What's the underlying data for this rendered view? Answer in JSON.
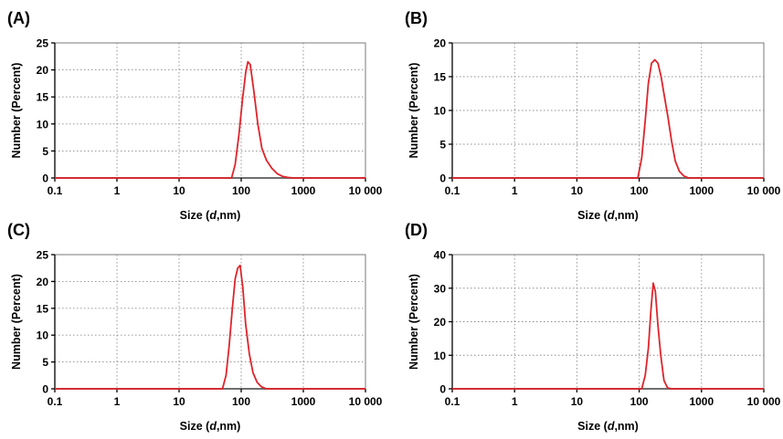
{
  "colors": {
    "series": "#e0242b",
    "axis": "#000000",
    "grid": "#8c8c8c"
  },
  "chart_data": [
    {
      "panel_label": "(A)",
      "type": "line",
      "x_scale": "log",
      "xlim": [
        0.1,
        10000
      ],
      "ylim": [
        0,
        25
      ],
      "x_ticks": [
        0.1,
        1,
        10,
        100,
        1000,
        10000
      ],
      "x_tick_labels": [
        "0.1",
        "1",
        "10",
        "100",
        "1000",
        "10 000"
      ],
      "y_ticks": [
        0,
        5,
        10,
        15,
        20,
        25
      ],
      "y_tick_labels": [
        "0",
        "5",
        "10",
        "15",
        "20",
        "25"
      ],
      "xlabel_pre": "Size (",
      "xlabel_var": "d",
      "xlabel_post": ",nm)",
      "ylabel": "Number (Percent)",
      "grid": true,
      "series": [
        {
          "x": [
            0.1,
            70,
            80,
            92,
            105,
            118,
            128,
            140,
            160,
            185,
            215,
            255,
            310,
            380,
            460,
            560,
            700,
            10000
          ],
          "y": [
            0,
            0,
            2.5,
            8,
            14.5,
            19.5,
            21.5,
            21,
            16,
            10,
            5.5,
            3.3,
            1.8,
            0.8,
            0.3,
            0.1,
            0,
            0
          ]
        }
      ]
    },
    {
      "panel_label": "(B)",
      "type": "line",
      "x_scale": "log",
      "xlim": [
        0.1,
        10000
      ],
      "ylim": [
        0,
        20
      ],
      "x_ticks": [
        0.1,
        1,
        10,
        100,
        1000,
        10000
      ],
      "x_tick_labels": [
        "0.1",
        "1",
        "10",
        "100",
        "1000",
        "10 000"
      ],
      "y_ticks": [
        0,
        5,
        10,
        15,
        20
      ],
      "y_tick_labels": [
        "0",
        "5",
        "10",
        "15",
        "20"
      ],
      "xlabel_pre": "Size (",
      "xlabel_var": "d",
      "xlabel_post": ",nm)",
      "ylabel": "Number (Percent)",
      "grid": true,
      "series": [
        {
          "x": [
            0.1,
            95,
            110,
            125,
            140,
            158,
            178,
            200,
            225,
            255,
            290,
            330,
            380,
            440,
            520,
            620,
            10000
          ],
          "y": [
            0,
            0,
            3,
            8.5,
            14,
            17,
            17.5,
            17,
            15,
            12,
            9,
            5.5,
            2.5,
            1,
            0.3,
            0,
            0
          ]
        }
      ]
    },
    {
      "panel_label": "(C)",
      "type": "line",
      "x_scale": "log",
      "xlim": [
        0.1,
        10000
      ],
      "ylim": [
        0,
        25
      ],
      "x_ticks": [
        0.1,
        1,
        10,
        100,
        1000,
        10000
      ],
      "x_tick_labels": [
        "0.1",
        "1",
        "10",
        "100",
        "1000",
        "10 000"
      ],
      "y_ticks": [
        0,
        5,
        10,
        15,
        20,
        25
      ],
      "y_tick_labels": [
        "0",
        "5",
        "10",
        "15",
        "20",
        "25"
      ],
      "xlabel_pre": "Size (",
      "xlabel_var": "d",
      "xlabel_post": ",nm)",
      "ylabel": "Number (Percent)",
      "grid": true,
      "series": [
        {
          "x": [
            0.1,
            50,
            57,
            64,
            72,
            80,
            88,
            96,
            106,
            118,
            135,
            155,
            180,
            210,
            250,
            10000
          ],
          "y": [
            0,
            0,
            2.5,
            8,
            15,
            20.5,
            22.5,
            23,
            19,
            12,
            6.5,
            3,
            1.2,
            0.4,
            0,
            0
          ]
        }
      ]
    },
    {
      "panel_label": "(D)",
      "type": "line",
      "x_scale": "log",
      "xlim": [
        0.1,
        10000
      ],
      "ylim": [
        0,
        40
      ],
      "x_ticks": [
        0.1,
        1,
        10,
        100,
        1000,
        10000
      ],
      "x_tick_labels": [
        "0.1",
        "1",
        "10",
        "100",
        "1000",
        "10 000"
      ],
      "y_ticks": [
        0,
        10,
        20,
        30,
        40
      ],
      "y_tick_labels": [
        "0",
        "10",
        "20",
        "30",
        "40"
      ],
      "xlabel_pre": "Size (",
      "xlabel_var": "d",
      "xlabel_post": ",nm)",
      "ylabel": "Number (Percent)",
      "grid": true,
      "series": [
        {
          "x": [
            0.1,
            110,
            125,
            140,
            155,
            168,
            182,
            200,
            222,
            250,
            285,
            330,
            10000
          ],
          "y": [
            0,
            0,
            4,
            12,
            24,
            31.5,
            29,
            19,
            10,
            2.5,
            0.3,
            0,
            0
          ]
        }
      ]
    }
  ]
}
